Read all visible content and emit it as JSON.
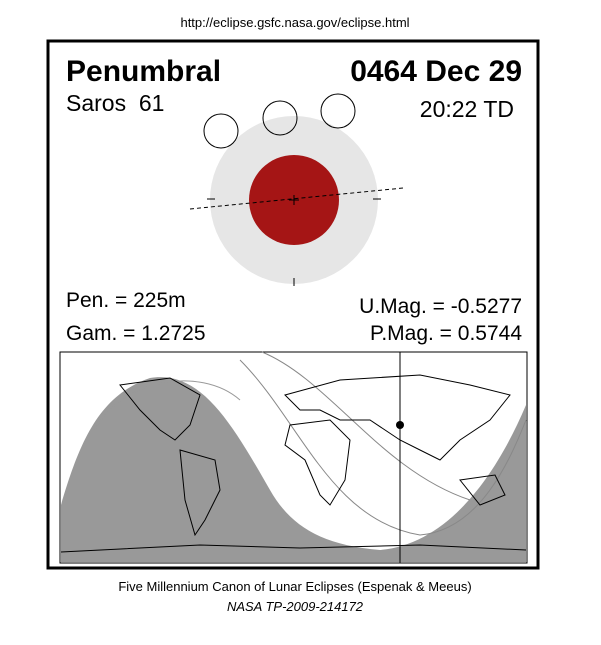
{
  "header": {
    "url": "http://eclipse.gsfc.nasa.gov/eclipse.html"
  },
  "eclipse": {
    "type": "Penumbral",
    "date": "0464 Dec 29",
    "saros": "Saros  61",
    "time": "20:22 TD",
    "pen": "Pen. = 225m",
    "gam": "Gam. = 1.2725",
    "umag": "U.Mag. = -0.5277",
    "pmag": "P.Mag. = 0.5744"
  },
  "footer": {
    "line1": "Five Millennium Canon of Lunar Eclipses (Espenak & Meeus)",
    "line2": "NASA TP-2009-214172"
  }
}
